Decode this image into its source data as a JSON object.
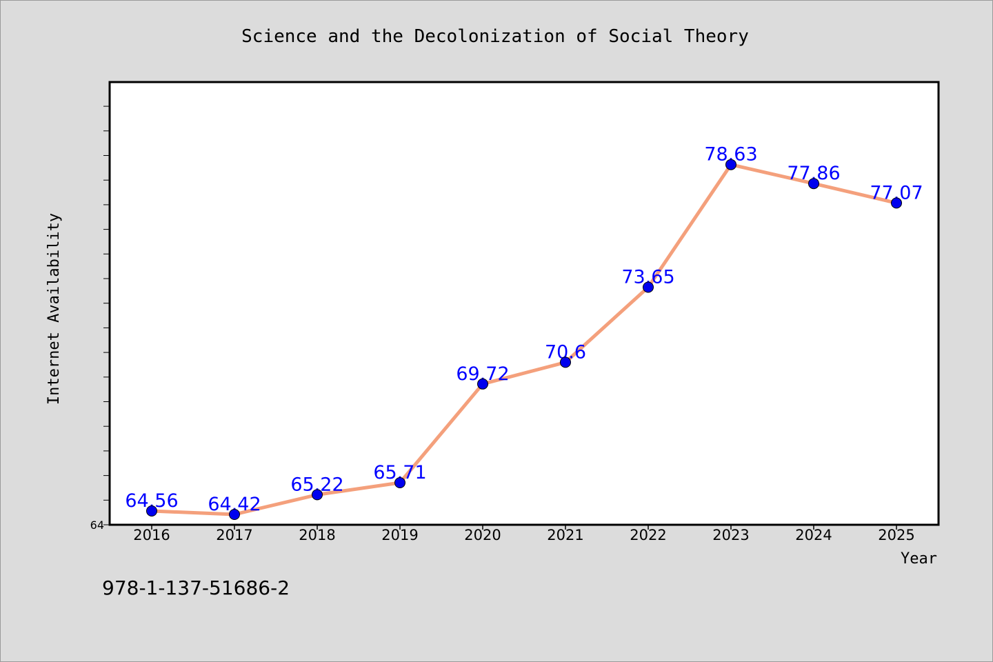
{
  "chart_data": {
    "type": "line",
    "title": "Science and the Decolonization of Social Theory",
    "xlabel": "Year",
    "ylabel": "Internet Availability",
    "categories": [
      "2016",
      "2017",
      "2018",
      "2019",
      "2020",
      "2021",
      "2022",
      "2023",
      "2024",
      "2025"
    ],
    "series": [
      {
        "values": [
          64.56,
          64.42,
          65.22,
          65.71,
          69.72,
          70.6,
          73.65,
          78.63,
          77.86,
          77.07
        ],
        "labels": [
          "64.56",
          "64.42",
          "65.22",
          "65.71",
          "69.72",
          "70.6",
          "73.65",
          "78.63",
          "77.86",
          "77.07"
        ]
      }
    ],
    "ylim": [
      64,
      82
    ],
    "y_tick_labels": [
      "64"
    ],
    "grid": false,
    "colors": {
      "line": "#f4a07c",
      "marker": "#0000ee",
      "data_label": "#0000ff"
    }
  },
  "footer": {
    "isbn": "978-1-137-51686-2"
  }
}
